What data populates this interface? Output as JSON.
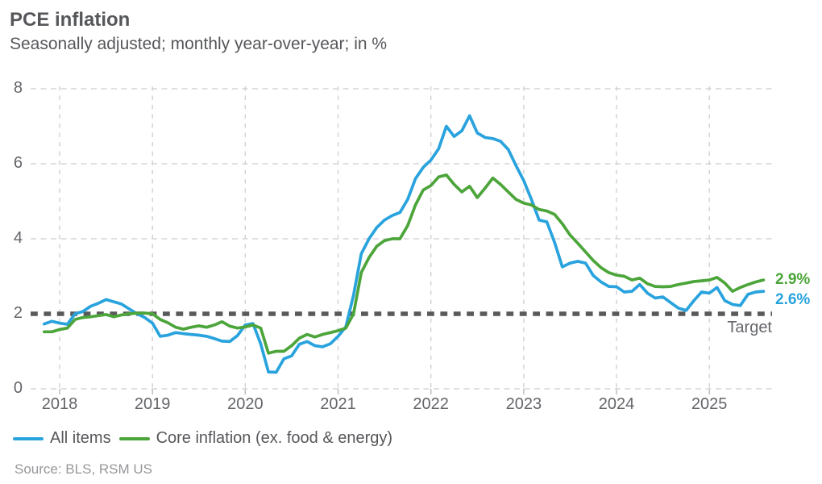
{
  "header": {
    "title": "PCE inflation",
    "subtitle": "Seasonally adjusted; monthly year-over-year; in %"
  },
  "source_note": "Source: BLS, RSM US",
  "colors": {
    "all_items_blue": "#29A3DD",
    "core_green": "#4CA53A",
    "target_line": "#58595B",
    "grid": "#CDCED0",
    "axis_text": "#636569",
    "title_text": "#56575A",
    "source_text": "#96979A"
  },
  "chart_data": {
    "type": "line",
    "title": "PCE inflation",
    "subtitle": "Seasonally adjusted; monthly year-over-year; in %",
    "frequency": "monthly",
    "x_start": "2017-11",
    "x_end": "2025-08",
    "x_tick_labels": [
      "2018",
      "2019",
      "2020",
      "2021",
      "2022",
      "2023",
      "2024",
      "2025"
    ],
    "ylim": [
      0,
      8
    ],
    "y_ticks": [
      8,
      6,
      4,
      2,
      0
    ],
    "grid": "dashed",
    "legend_position": "bottom",
    "target_line": {
      "value": 2,
      "label": "Target"
    },
    "series": [
      {
        "name": "All items",
        "color": "#29A3DD",
        "end_label": "2.6%",
        "values": [
          1.73,
          1.8,
          1.75,
          1.72,
          2.0,
          2.06,
          2.2,
          2.28,
          2.38,
          2.32,
          2.26,
          2.13,
          2.0,
          1.9,
          1.75,
          1.4,
          1.43,
          1.5,
          1.47,
          1.45,
          1.43,
          1.4,
          1.34,
          1.27,
          1.26,
          1.42,
          1.7,
          1.74,
          1.2,
          0.45,
          0.44,
          0.8,
          0.88,
          1.19,
          1.26,
          1.15,
          1.12,
          1.2,
          1.4,
          1.65,
          2.5,
          3.6,
          4.0,
          4.3,
          4.5,
          4.62,
          4.7,
          5.05,
          5.6,
          5.9,
          6.1,
          6.4,
          7.0,
          6.73,
          6.88,
          7.28,
          6.82,
          6.7,
          6.67,
          6.6,
          6.38,
          5.95,
          5.55,
          5.05,
          4.5,
          4.45,
          3.9,
          3.25,
          3.35,
          3.4,
          3.35,
          3.02,
          2.85,
          2.73,
          2.72,
          2.58,
          2.6,
          2.78,
          2.55,
          2.42,
          2.45,
          2.3,
          2.15,
          2.09,
          2.35,
          2.58,
          2.55,
          2.7,
          2.35,
          2.25,
          2.22,
          2.52,
          2.58,
          2.6
        ]
      },
      {
        "name": "Core inflation (ex. food & energy)",
        "color": "#4CA53A",
        "end_label": "2.9%",
        "values": [
          1.52,
          1.52,
          1.58,
          1.62,
          1.85,
          1.9,
          1.92,
          1.95,
          1.98,
          1.92,
          1.97,
          2.0,
          2.02,
          2.02,
          2.0,
          1.85,
          1.76,
          1.64,
          1.59,
          1.64,
          1.68,
          1.64,
          1.7,
          1.79,
          1.67,
          1.62,
          1.65,
          1.7,
          1.62,
          0.95,
          1.0,
          1.0,
          1.15,
          1.35,
          1.45,
          1.38,
          1.45,
          1.5,
          1.55,
          1.62,
          2.0,
          3.1,
          3.5,
          3.8,
          3.95,
          4.0,
          4.0,
          4.35,
          4.9,
          5.3,
          5.42,
          5.65,
          5.7,
          5.45,
          5.25,
          5.4,
          5.1,
          5.35,
          5.62,
          5.45,
          5.25,
          5.05,
          4.95,
          4.9,
          4.78,
          4.74,
          4.65,
          4.4,
          4.1,
          3.88,
          3.65,
          3.42,
          3.23,
          3.1,
          3.03,
          3.0,
          2.9,
          2.95,
          2.8,
          2.73,
          2.72,
          2.73,
          2.78,
          2.82,
          2.86,
          2.88,
          2.9,
          2.97,
          2.82,
          2.6,
          2.7,
          2.78,
          2.85,
          2.9
        ]
      }
    ]
  }
}
